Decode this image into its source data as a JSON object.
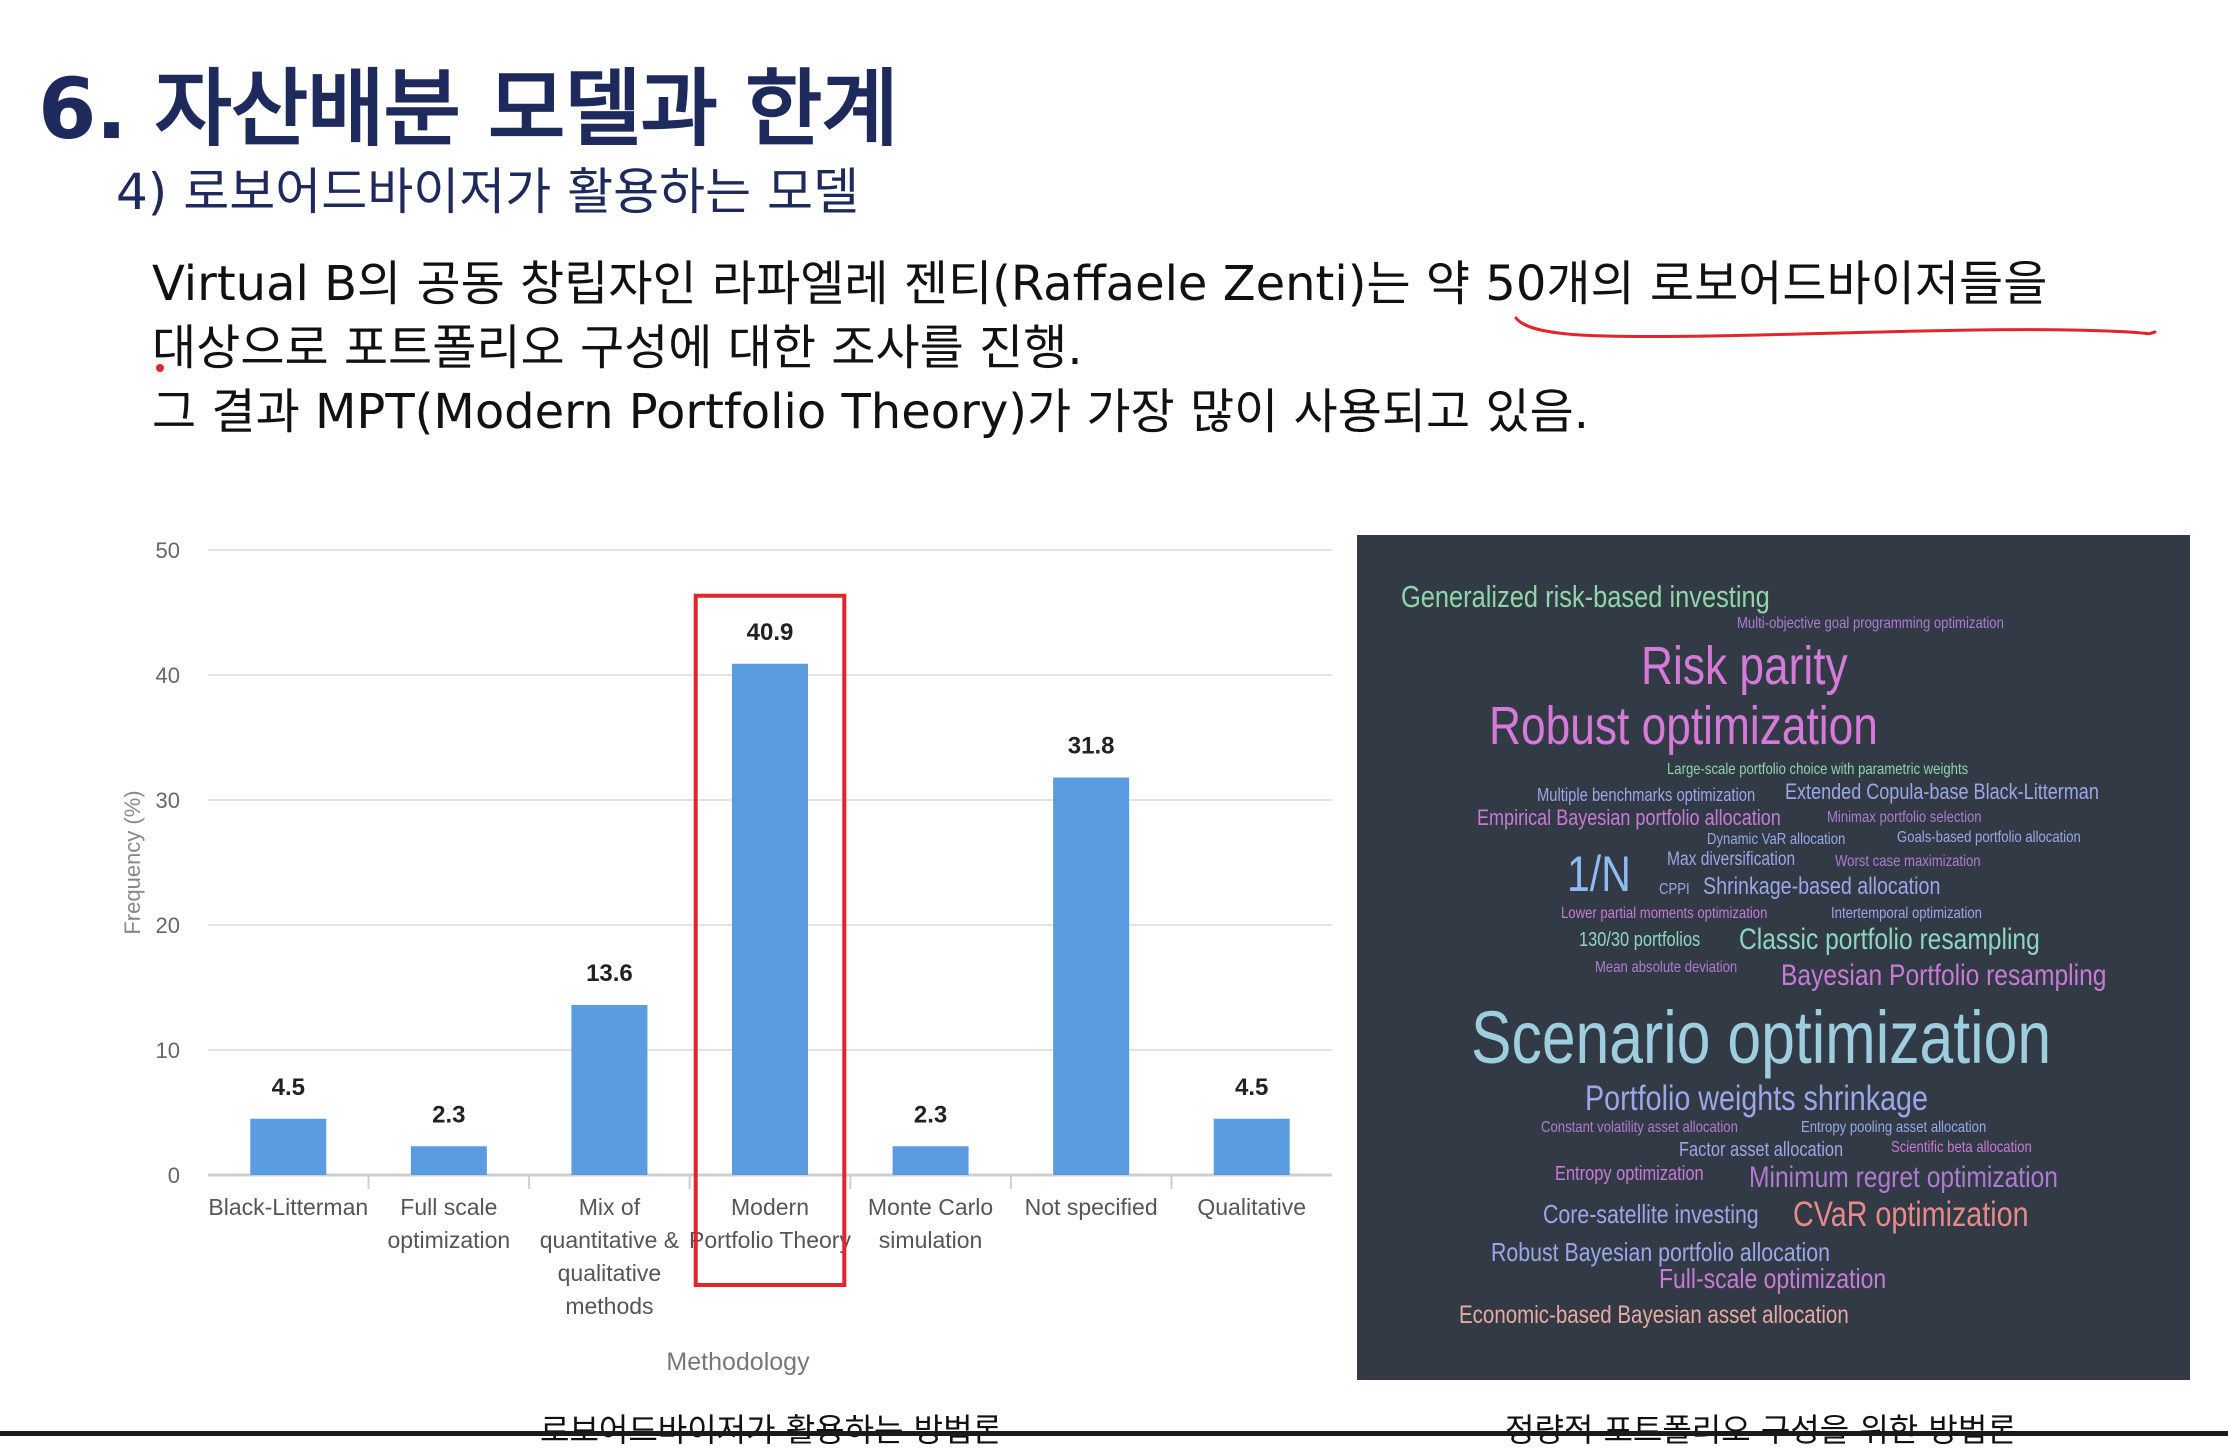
{
  "title": "6. 자산배분 모델과 한계",
  "subtitle": "4) 로보어드바이저가 활용하는 모델",
  "body": {
    "line1": "Virtual B의 공동 창립자인 라파엘레 젠티(Raffaele Zenti)는 약 50개의 로보어드바이저들을",
    "line2": "대상으로 포트폴리오 구성에 대한 조사를 진행.",
    "line3": "그 결과 MPT(Modern Portfolio Theory)가 가장 많이 사용되고 있음."
  },
  "chart_data": {
    "type": "bar",
    "categories": [
      [
        "Black-Litterman"
      ],
      [
        "Full scale",
        "optimization"
      ],
      [
        "Mix of",
        "quantitative &",
        "qualitative",
        "methods"
      ],
      [
        "Modern",
        "Portfolio Theory"
      ],
      [
        "Monte Carlo",
        "simulation"
      ],
      [
        "Not specified"
      ],
      [
        "Qualitative"
      ]
    ],
    "values": [
      4.5,
      2.3,
      13.6,
      40.9,
      2.3,
      31.8,
      4.5
    ],
    "value_labels": [
      "4.5",
      "2.3",
      "13.6",
      "40.9",
      "2.3",
      "31.8",
      "4.5"
    ],
    "xlabel": "Methodology",
    "ylabel": "Frequency (%)",
    "ylim": [
      0,
      50
    ],
    "yticks": [
      "0",
      "10",
      "20",
      "30",
      "40",
      "50"
    ],
    "grid": true,
    "highlight_index": 3,
    "colors": {
      "bar": "#5b9be0",
      "highlight_box": "#e0262a",
      "grid": "#e3e3e3"
    }
  },
  "wordcloud": {
    "words": [
      {
        "text": "Generalized risk-based investing",
        "color": "#8ed6a8"
      },
      {
        "text": "Multi-objective goal programming optimization",
        "color": "#b07ad1"
      },
      {
        "text": "Risk parity",
        "color": "#d57ad9"
      },
      {
        "text": "Robust optimization",
        "color": "#d57ad9"
      },
      {
        "text": "Large-scale portfolio choice with parametric weights",
        "color": "#8ed6a8"
      },
      {
        "text": "Multiple benchmarks optimization",
        "color": "#9aa7e8"
      },
      {
        "text": "Extended Copula-base Black-Litterman",
        "color": "#9aa7e8"
      },
      {
        "text": "Empirical Bayesian portfolio allocation",
        "color": "#c77ad6"
      },
      {
        "text": "Minimax portfolio selection",
        "color": "#b07ad1"
      },
      {
        "text": "Dynamic VaR allocation",
        "color": "#9aa7e8"
      },
      {
        "text": "Goals-based portfolio allocation",
        "color": "#9aa7e8"
      },
      {
        "text": "1/N",
        "color": "#8fbaf2"
      },
      {
        "text": "Max diversification",
        "color": "#9aa7e8"
      },
      {
        "text": "Worst case maximization",
        "color": "#b07ad1"
      },
      {
        "text": "CPPI",
        "color": "#9aa7e8"
      },
      {
        "text": "Shrinkage-based allocation",
        "color": "#9aa7e8"
      },
      {
        "text": "Lower partial moments optimization",
        "color": "#c77ad6"
      },
      {
        "text": "Intertemporal optimization",
        "color": "#9aa7e8"
      },
      {
        "text": "130/30 portfolios",
        "color": "#8ed6c2"
      },
      {
        "text": "Classic portfolio resampling",
        "color": "#8ed6c2"
      },
      {
        "text": "Mean absolute deviation",
        "color": "#b07ad1"
      },
      {
        "text": "Bayesian Portfolio resampling",
        "color": "#c77ad6"
      },
      {
        "text": "Scenario optimization",
        "color": "#9ecde0"
      },
      {
        "text": "Portfolio weights shrinkage",
        "color": "#9aa7e8"
      },
      {
        "text": "Constant volatility asset allocation",
        "color": "#b07ad1"
      },
      {
        "text": "Entropy pooling asset allocation",
        "color": "#9aa7e8"
      },
      {
        "text": "Factor asset allocation",
        "color": "#9aa7e8"
      },
      {
        "text": "Scientific beta allocation",
        "color": "#c77ad6"
      },
      {
        "text": "Entropy optimization",
        "color": "#c77ad6"
      },
      {
        "text": "Minimum regret optimization",
        "color": "#b07ad1"
      },
      {
        "text": "Core-satellite investing",
        "color": "#9aa7e8"
      },
      {
        "text": "CVaR optimization",
        "color": "#e88a8a"
      },
      {
        "text": "Robust Bayesian portfolio allocation",
        "color": "#9aa7e8"
      },
      {
        "text": "Full-scale optimization",
        "color": "#c77ad6"
      },
      {
        "text": "Economic-based Bayesian asset allocation",
        "color": "#e8a9a0"
      }
    ]
  },
  "captions": {
    "left": "로보어드바이저가 활용하는 방법론",
    "right": "정량적 포트폴리오 구성을 위한 방법론"
  }
}
